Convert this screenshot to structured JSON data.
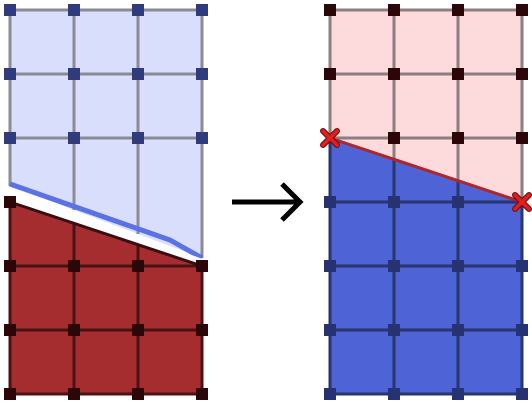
{
  "diagram": {
    "background": "#ffffff",
    "grid": {
      "columns": 3,
      "rows": 6
    },
    "before_panel": {
      "upper_region": {
        "fill": "#d9defd",
        "grid_line_color": "#8b8a96",
        "node_color": "#2f3b7c"
      },
      "lower_region": {
        "fill": "#a52c2f",
        "grid_line_color": "#4a1214",
        "node_color": "#2b0709"
      },
      "boundary_strokes": [
        {
          "name": "blue-edge",
          "color": "#5a72e5"
        },
        {
          "name": "white-gap",
          "color": "#ffffff"
        },
        {
          "name": "dark-edge",
          "color": "#3a0d10"
        }
      ]
    },
    "arrow": {
      "color": "#000000"
    },
    "after_panel": {
      "upper_region": {
        "fill": "#fddadb",
        "grid_line_color": "#8b7f82",
        "node_color": "#2b0709"
      },
      "lower_region": {
        "fill": "#4d63d6",
        "grid_line_color": "#28356e",
        "node_color": "#273272"
      },
      "boundary_line": {
        "color": "#b0252a"
      },
      "intersection_markers": {
        "color": "#e02020",
        "outline": "#7a1010",
        "count": 2
      }
    }
  }
}
